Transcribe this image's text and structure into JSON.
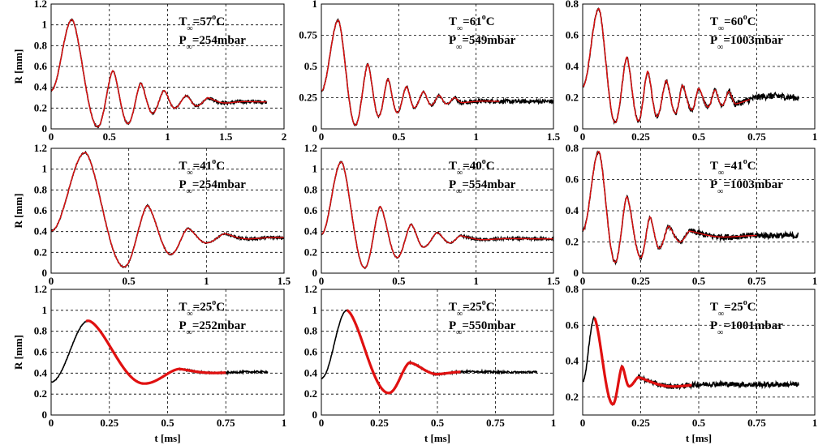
{
  "figure": {
    "ylabel": "R [mm]",
    "xlabel": "t [ms]"
  },
  "colors": {
    "measured": "#000000",
    "model": "#e01010"
  },
  "chart_data": [
    {
      "type": "line",
      "xlim": [
        0,
        2
      ],
      "ylim": [
        0,
        1.2
      ],
      "xticks": [
        "0",
        "0.5",
        "1",
        "1.5",
        "2"
      ],
      "yticks": [
        "0",
        "0.2",
        "0.4",
        "0.6",
        "0.8",
        "1",
        "1.2"
      ],
      "grid": true,
      "annotation": {
        "T": "=57",
        "T_unit": "C",
        "P": "=254mbar"
      },
      "minima": [
        [
          0.4,
          0.02
        ],
        [
          0.66,
          0.05
        ],
        [
          0.87,
          0.15
        ],
        [
          1.06,
          0.2
        ],
        [
          1.25,
          0.22
        ]
      ],
      "maxima": [
        [
          0.18,
          1.05
        ],
        [
          0.53,
          0.56
        ],
        [
          0.77,
          0.44
        ],
        [
          0.97,
          0.37
        ],
        [
          1.16,
          0.32
        ],
        [
          1.35,
          0.3
        ]
      ],
      "measured_end": 1.85,
      "model_end": 1.85,
      "final": 0.26,
      "noise": 0.012
    },
    {
      "type": "line",
      "xlim": [
        0,
        1.5
      ],
      "ylim": [
        0,
        1
      ],
      "xticks": [
        "0",
        "0.5",
        "1",
        "1.5"
      ],
      "yticks": [
        "0",
        "0.25",
        "0.5",
        "0.75",
        "1"
      ],
      "grid": true,
      "annotation": {
        "T": "=61",
        "T_unit": "C",
        "P": "=549mbar"
      },
      "minima": [
        [
          0.22,
          0.03
        ],
        [
          0.37,
          0.1
        ],
        [
          0.49,
          0.13
        ],
        [
          0.6,
          0.17
        ],
        [
          0.71,
          0.19
        ],
        [
          0.81,
          0.2
        ],
        [
          0.91,
          0.21
        ]
      ],
      "maxima": [
        [
          0.11,
          0.87
        ],
        [
          0.3,
          0.52
        ],
        [
          0.43,
          0.4
        ],
        [
          0.55,
          0.34
        ],
        [
          0.66,
          0.3
        ],
        [
          0.76,
          0.27
        ],
        [
          0.86,
          0.25
        ]
      ],
      "measured_end": 1.5,
      "model_end": 1.15,
      "final": 0.22,
      "noise": 0.012
    },
    {
      "type": "line",
      "xlim": [
        0,
        1
      ],
      "ylim": [
        0,
        0.8
      ],
      "xticks": [
        "0",
        "0.25",
        "0.5",
        "0.75",
        "1"
      ],
      "yticks": [
        "0",
        "0.2",
        "0.4",
        "0.6",
        "0.8"
      ],
      "grid": true,
      "annotation": {
        "T": "=60",
        "T_unit": "C",
        "P": "=1003mbar"
      },
      "minima": [
        [
          0.14,
          0.04
        ],
        [
          0.24,
          0.05
        ],
        [
          0.32,
          0.08
        ],
        [
          0.4,
          0.1
        ],
        [
          0.47,
          0.12
        ],
        [
          0.54,
          0.14
        ],
        [
          0.6,
          0.15
        ],
        [
          0.66,
          0.16
        ]
      ],
      "maxima": [
        [
          0.07,
          0.77
        ],
        [
          0.19,
          0.46
        ],
        [
          0.28,
          0.37
        ],
        [
          0.36,
          0.31
        ],
        [
          0.43,
          0.28
        ],
        [
          0.5,
          0.26
        ],
        [
          0.57,
          0.25
        ],
        [
          0.63,
          0.24
        ]
      ],
      "measured_end": 0.93,
      "model_end": 0.72,
      "final": 0.2,
      "noise": 0.015
    },
    {
      "type": "line",
      "xlim": [
        0,
        1.5
      ],
      "ylim": [
        0,
        1.2
      ],
      "xticks": [
        "0",
        "0.5",
        "1",
        "1.5"
      ],
      "yticks": [
        "0",
        "0.2",
        "0.4",
        "0.6",
        "0.8",
        "1",
        "1.2"
      ],
      "grid": true,
      "annotation": {
        "T": "=41",
        "T_unit": "C",
        "P": "=254mbar"
      },
      "minima": [
        [
          0.47,
          0.06
        ],
        [
          0.77,
          0.18
        ],
        [
          1.0,
          0.29
        ]
      ],
      "maxima": [
        [
          0.22,
          1.16
        ],
        [
          0.62,
          0.65
        ],
        [
          0.88,
          0.43
        ],
        [
          1.12,
          0.38
        ]
      ],
      "measured_end": 1.5,
      "model_end": 1.5,
      "final": 0.34,
      "noise": 0.01
    },
    {
      "type": "line",
      "xlim": [
        0,
        1.5
      ],
      "ylim": [
        0,
        1.2
      ],
      "xticks": [
        "0",
        "0.5",
        "1",
        "1.5"
      ],
      "yticks": [
        "0",
        "0.2",
        "0.4",
        "0.6",
        "0.8",
        "1",
        "1.2"
      ],
      "grid": true,
      "annotation": {
        "T": "=40",
        "T_unit": "C",
        "P": "=554mbar"
      },
      "minima": [
        [
          0.28,
          0.05
        ],
        [
          0.49,
          0.15
        ],
        [
          0.66,
          0.25
        ],
        [
          0.83,
          0.29
        ]
      ],
      "maxima": [
        [
          0.13,
          1.07
        ],
        [
          0.38,
          0.64
        ],
        [
          0.58,
          0.47
        ],
        [
          0.75,
          0.39
        ],
        [
          0.9,
          0.36
        ]
      ],
      "measured_end": 1.5,
      "model_end": 1.5,
      "final": 0.33,
      "noise": 0.008
    },
    {
      "type": "line",
      "xlim": [
        0,
        1
      ],
      "ylim": [
        0,
        0.8
      ],
      "xticks": [
        "0",
        "0.25",
        "0.5",
        "0.75",
        "1"
      ],
      "yticks": [
        "0",
        "0.2",
        "0.4",
        "0.6",
        "0.8"
      ],
      "grid": true,
      "annotation": {
        "T": "=41",
        "T_unit": "C",
        "P": "=1003mbar"
      },
      "minima": [
        [
          0.14,
          0.07
        ],
        [
          0.25,
          0.1
        ],
        [
          0.33,
          0.16
        ],
        [
          0.42,
          0.2
        ]
      ],
      "maxima": [
        [
          0.07,
          0.78
        ],
        [
          0.19,
          0.49
        ],
        [
          0.29,
          0.36
        ],
        [
          0.37,
          0.3
        ],
        [
          0.46,
          0.27
        ]
      ],
      "measured_end": 0.93,
      "model_end": 0.75,
      "final": 0.24,
      "noise": 0.014
    },
    {
      "type": "line",
      "xlim": [
        0,
        1
      ],
      "ylim": [
        0,
        1.2
      ],
      "xticks": [
        "0",
        "0.25",
        "0.5",
        "0.75",
        "1"
      ],
      "yticks": [
        "0",
        "0.2",
        "0.4",
        "0.6",
        "0.8",
        "1",
        "1.2"
      ],
      "grid": true,
      "annotation": {
        "T": "=25",
        "T_unit": "C",
        "P": "=252mbar"
      },
      "minima": [
        [
          0.4,
          0.3
        ]
      ],
      "maxima": [
        [
          0.16,
          0.9
        ],
        [
          0.55,
          0.44
        ]
      ],
      "measured_end": 0.93,
      "model_end": 0.75,
      "model_start": 0.15,
      "final": 0.41,
      "noise": 0.006
    },
    {
      "type": "line",
      "xlim": [
        0,
        1
      ],
      "ylim": [
        0,
        1.2
      ],
      "xticks": [
        "0",
        "0.25",
        "0.5",
        "0.75",
        "1"
      ],
      "yticks": [
        "0",
        "0.2",
        "0.4",
        "0.6",
        "0.8",
        "1",
        "1.2"
      ],
      "grid": true,
      "annotation": {
        "T": "=25",
        "T_unit": "C",
        "P": "=550mbar"
      },
      "minima": [
        [
          0.29,
          0.21
        ],
        [
          0.5,
          0.39
        ]
      ],
      "maxima": [
        [
          0.11,
          1.0
        ],
        [
          0.38,
          0.5
        ]
      ],
      "measured_end": 0.93,
      "model_end": 0.6,
      "model_start": 0.11,
      "final": 0.41,
      "noise": 0.006
    },
    {
      "type": "line",
      "xlim": [
        0,
        1
      ],
      "ylim": [
        0.1,
        0.8
      ],
      "xticks": [
        "0",
        "0.25",
        "0.5",
        "0.75",
        "1"
      ],
      "yticks": [
        "0.2",
        "0.4",
        "0.6",
        "0.8"
      ],
      "grid": true,
      "annotation": {
        "T": "=25",
        "T_unit": "C",
        "P": "=1001mbar"
      },
      "minima": [
        [
          0.13,
          0.16
        ],
        [
          0.2,
          0.26
        ]
      ],
      "maxima": [
        [
          0.05,
          0.64
        ],
        [
          0.17,
          0.37
        ],
        [
          0.24,
          0.31
        ]
      ],
      "measured_end": 0.93,
      "model_end": 0.47,
      "model_start": 0.05,
      "final": 0.27,
      "noise": 0.01
    }
  ]
}
